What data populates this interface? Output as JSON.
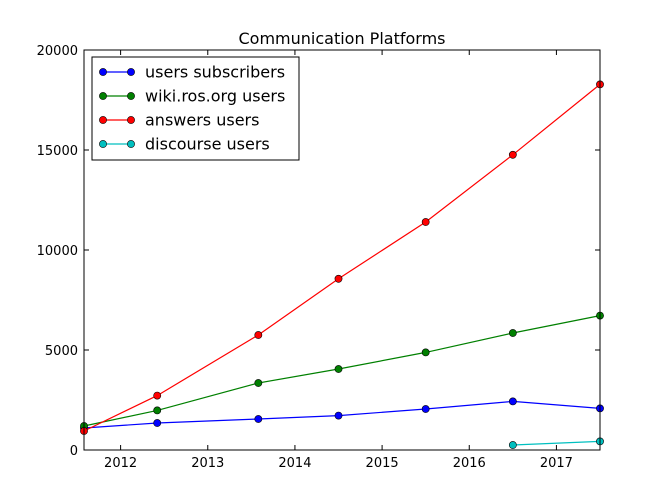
{
  "chart_data": {
    "type": "line",
    "title": "Communication Platforms",
    "xlabel": "",
    "ylabel": "",
    "xlim": [
      2011.58,
      2017.5
    ],
    "ylim": [
      0,
      20000
    ],
    "x_ticks": [
      {
        "value": 2012,
        "label": "2012"
      },
      {
        "value": 2013,
        "label": "2013"
      },
      {
        "value": 2014,
        "label": "2014"
      },
      {
        "value": 2015,
        "label": "2015"
      },
      {
        "value": 2016,
        "label": "2016"
      },
      {
        "value": 2017,
        "label": "2017"
      }
    ],
    "y_ticks": [
      {
        "value": 0,
        "label": "0"
      },
      {
        "value": 5000,
        "label": "5000"
      },
      {
        "value": 10000,
        "label": "10000"
      },
      {
        "value": 15000,
        "label": "15000"
      },
      {
        "value": 20000,
        "label": "20000"
      }
    ],
    "grid": false,
    "legend_position": "top-left",
    "series": [
      {
        "name": "users subscribers",
        "color": "#0000ff",
        "x": [
          2011.58,
          2012.42,
          2013.58,
          2014.5,
          2015.5,
          2016.5,
          2017.5
        ],
        "y": [
          1100,
          1350,
          1550,
          1720,
          2050,
          2430,
          2080
        ]
      },
      {
        "name": "wiki.ros.org users",
        "color": "#008000",
        "x": [
          2011.58,
          2012.42,
          2013.58,
          2014.5,
          2015.5,
          2016.5,
          2017.5
        ],
        "y": [
          1200,
          1980,
          3350,
          4050,
          4880,
          5850,
          6720
        ]
      },
      {
        "name": "answers users",
        "color": "#ff0000",
        "x": [
          2011.58,
          2012.42,
          2013.58,
          2014.5,
          2015.5,
          2016.5,
          2017.5
        ],
        "y": [
          950,
          2720,
          5750,
          8560,
          11400,
          14760,
          18280
        ]
      },
      {
        "name": "discourse users",
        "color": "#00bfbf",
        "x": [
          2016.5,
          2017.5
        ],
        "y": [
          250,
          430
        ]
      }
    ]
  }
}
